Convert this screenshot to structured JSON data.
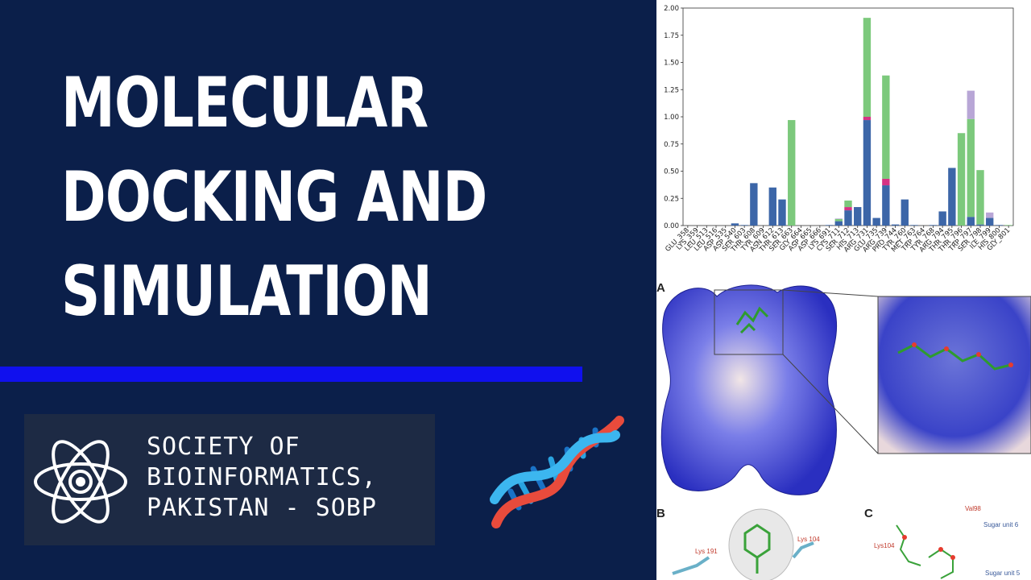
{
  "title": "MOLECULAR\nDOCKING AND\nSIMULATION",
  "organization": "SOCIETY OF\nBIOINFORMATICS,\nPAKISTAN - SOBP",
  "icons": [
    "atom-logo-icon",
    "dna-helix-icon"
  ],
  "colors": {
    "background": "#0b1f4a",
    "accent_bar": "#1010ee",
    "logo_box": "#1d2a44",
    "series_blue": "#3c66a8",
    "series_magenta": "#d63384",
    "series_green": "#7cc97c",
    "series_lavender": "#b8a6d6"
  },
  "figure": {
    "panel_a_label": "A",
    "panel_b_label": "B",
    "panel_c_label": "C",
    "panel_b_labels": [
      "Lys 191",
      "Lys 104"
    ],
    "panel_c_labels": [
      "Val98",
      "Sugar unit 6",
      "Lys104",
      "Sugar unit 5"
    ]
  },
  "chart_data": {
    "type": "bar",
    "stacked": true,
    "ylim": [
      0,
      2.0
    ],
    "yticks": [
      "0.00",
      "0.25",
      "0.50",
      "0.75",
      "1.00",
      "1.25",
      "1.50",
      "1.75",
      "2.00"
    ],
    "categories": [
      "GLU_358",
      "LYS_359",
      "LEU_513",
      "LEU_516",
      "ASP_535",
      "ASP_540",
      "SER_603",
      "THR_608",
      "TYR_609",
      "ASN_612",
      "THR_613",
      "SER_663",
      "GLY_664",
      "ASP_665",
      "ASP_666",
      "LYS_691",
      "CYS_711",
      "SER_712",
      "HIS_713",
      "ARG_731",
      "GLU_735",
      "ARG_739",
      "PRO_744",
      "TYR_760",
      "MET_763",
      "TRP_764",
      "TYR_768",
      "ARG_794",
      "THR_795",
      "THR_796",
      "TRP_797",
      "SER_798",
      "ILE_799",
      "HIS_800",
      "GLY_801"
    ],
    "series": [
      {
        "values": [
          0,
          0,
          0,
          0,
          0,
          0.02,
          0.005,
          0.39,
          0,
          0.35,
          0.24,
          0,
          0,
          0,
          0,
          0.005,
          0.04,
          0.14,
          0.17,
          0.97,
          0.07,
          0.37,
          0.01,
          0.24,
          0.005,
          0,
          0.005,
          0.13,
          0.53,
          0,
          0.08,
          0.01,
          0.07,
          0.005,
          0
        ]
      },
      {
        "values": [
          0,
          0,
          0,
          0,
          0,
          0,
          0,
          0,
          0,
          0,
          0,
          0,
          0,
          0,
          0,
          0,
          0,
          0.03,
          0,
          0.03,
          0,
          0.06,
          0,
          0,
          0,
          0,
          0,
          0,
          0,
          0,
          0,
          0,
          0,
          0,
          0
        ]
      },
      {
        "values": [
          0,
          0,
          0,
          0,
          0,
          0,
          0,
          0,
          0,
          0,
          0,
          0.97,
          0,
          0,
          0,
          0,
          0.02,
          0.06,
          0,
          0.91,
          0,
          0.95,
          0,
          0,
          0,
          0,
          0,
          0,
          0,
          0.85,
          0.9,
          0.5,
          0,
          0,
          0.005
        ]
      },
      {
        "values": [
          0,
          0,
          0,
          0,
          0,
          0,
          0,
          0,
          0,
          0,
          0,
          0,
          0,
          0,
          0,
          0,
          0.005,
          0,
          0,
          0,
          0,
          0,
          0,
          0,
          0,
          0,
          0,
          0,
          0,
          0,
          0.26,
          0,
          0.05,
          0,
          0
        ]
      }
    ],
    "grid": false
  }
}
